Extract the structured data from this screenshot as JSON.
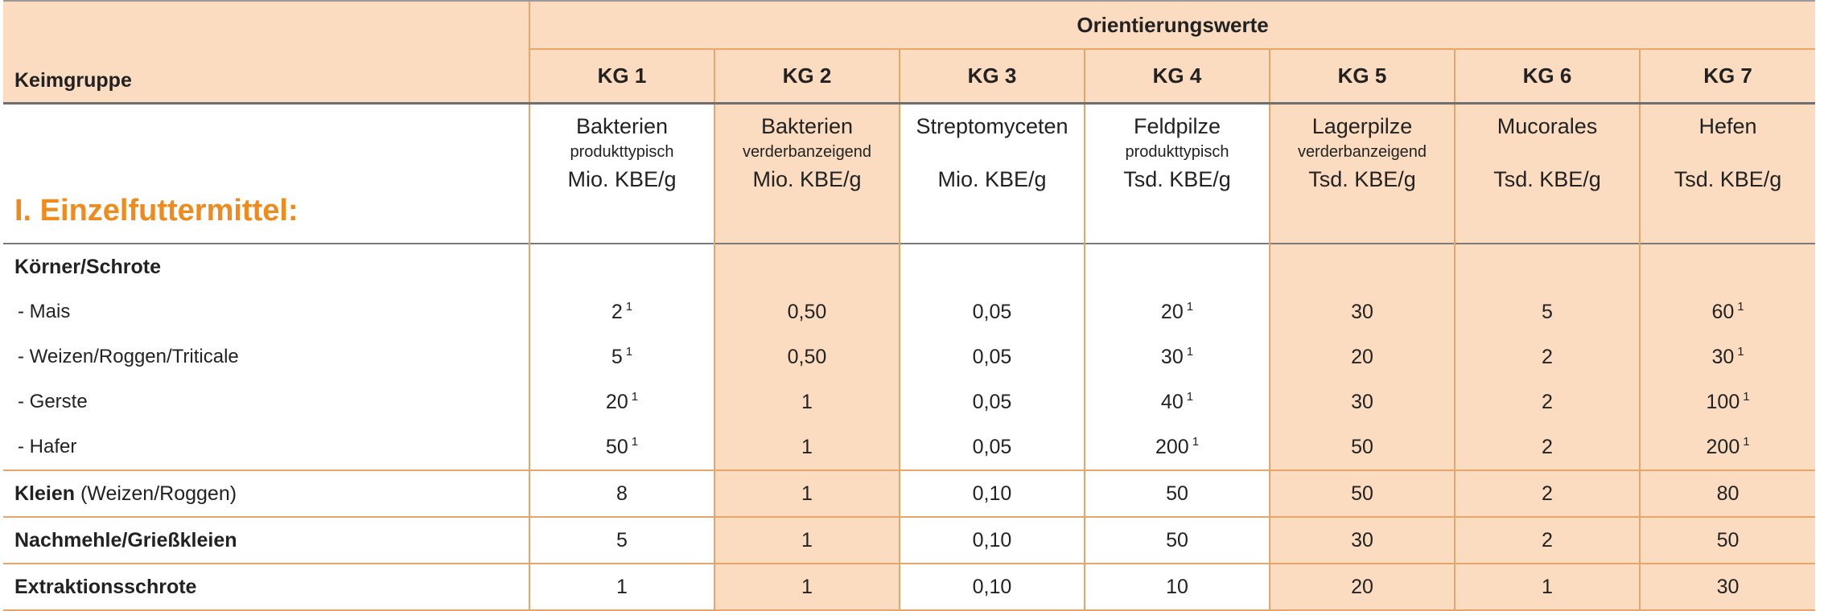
{
  "header": {
    "orientation_title": "Orientierungswerte",
    "group_label": "Keimgruppe",
    "kg": [
      "KG 1",
      "KG 2",
      "KG 3",
      "KG 4",
      "KG 5",
      "KG 6",
      "KG 7"
    ]
  },
  "section_title": "I. Einzelfuttermittel:",
  "descriptions": [
    {
      "name": "Bakterien",
      "sub": "produkttypisch",
      "unit": "Mio. KBE/g"
    },
    {
      "name": "Bakterien",
      "sub": "verderbanzeigend",
      "unit": "Mio. KBE/g"
    },
    {
      "name": "Streptomyceten",
      "sub": "",
      "unit": "Mio. KBE/g"
    },
    {
      "name": "Feldpilze",
      "sub": "produkttypisch",
      "unit": "Tsd. KBE/g"
    },
    {
      "name": "Lagerpilze",
      "sub": "verderbanzeigend",
      "unit": "Tsd. KBE/g"
    },
    {
      "name": "Mucorales",
      "sub": "",
      "unit": "Tsd. KBE/g"
    },
    {
      "name": "Hefen",
      "sub": "",
      "unit": "Tsd. KBE/g"
    }
  ],
  "category_1": "Körner/Schrote",
  "rows": [
    {
      "label": "- Mais",
      "values": [
        "2",
        "0,50",
        "0,05",
        "20",
        "30",
        "5",
        "60"
      ],
      "sup": [
        "1",
        "",
        "",
        "1",
        "",
        "",
        "1"
      ]
    },
    {
      "label": "- Weizen/Roggen/Triticale",
      "values": [
        "5",
        "0,50",
        "0,05",
        "30",
        "20",
        "2",
        "30"
      ],
      "sup": [
        "1",
        "",
        "",
        "1",
        "",
        "",
        "1"
      ]
    },
    {
      "label": "- Gerste",
      "values": [
        "20",
        "1",
        "0,05",
        "40",
        "30",
        "2",
        "100"
      ],
      "sup": [
        "1",
        "",
        "",
        "1",
        "",
        "",
        "1"
      ]
    },
    {
      "label": "- Hafer",
      "values": [
        "50",
        "1",
        "0,05",
        "200",
        "50",
        "2",
        "200"
      ],
      "sup": [
        "1",
        "",
        "",
        "1",
        "",
        "",
        "1"
      ]
    }
  ],
  "kleien": {
    "label_bold": "Kleien",
    "label_rest": " (Weizen/Roggen)",
    "values": [
      "8",
      "1",
      "0,10",
      "50",
      "50",
      "2",
      "80"
    ]
  },
  "nachmehle": {
    "label": "Nachmehle/Grießkleien",
    "values": [
      "5",
      "1",
      "0,10",
      "50",
      "30",
      "2",
      "50"
    ]
  },
  "extraktion": {
    "label": "Extraktionsschrote",
    "values": [
      "1",
      "1",
      "0,10",
      "10",
      "20",
      "1",
      "30"
    ]
  },
  "colors": {
    "shade": "#fbdcc0",
    "accent": "#ef8a1c",
    "rule": "#e6a56a"
  }
}
